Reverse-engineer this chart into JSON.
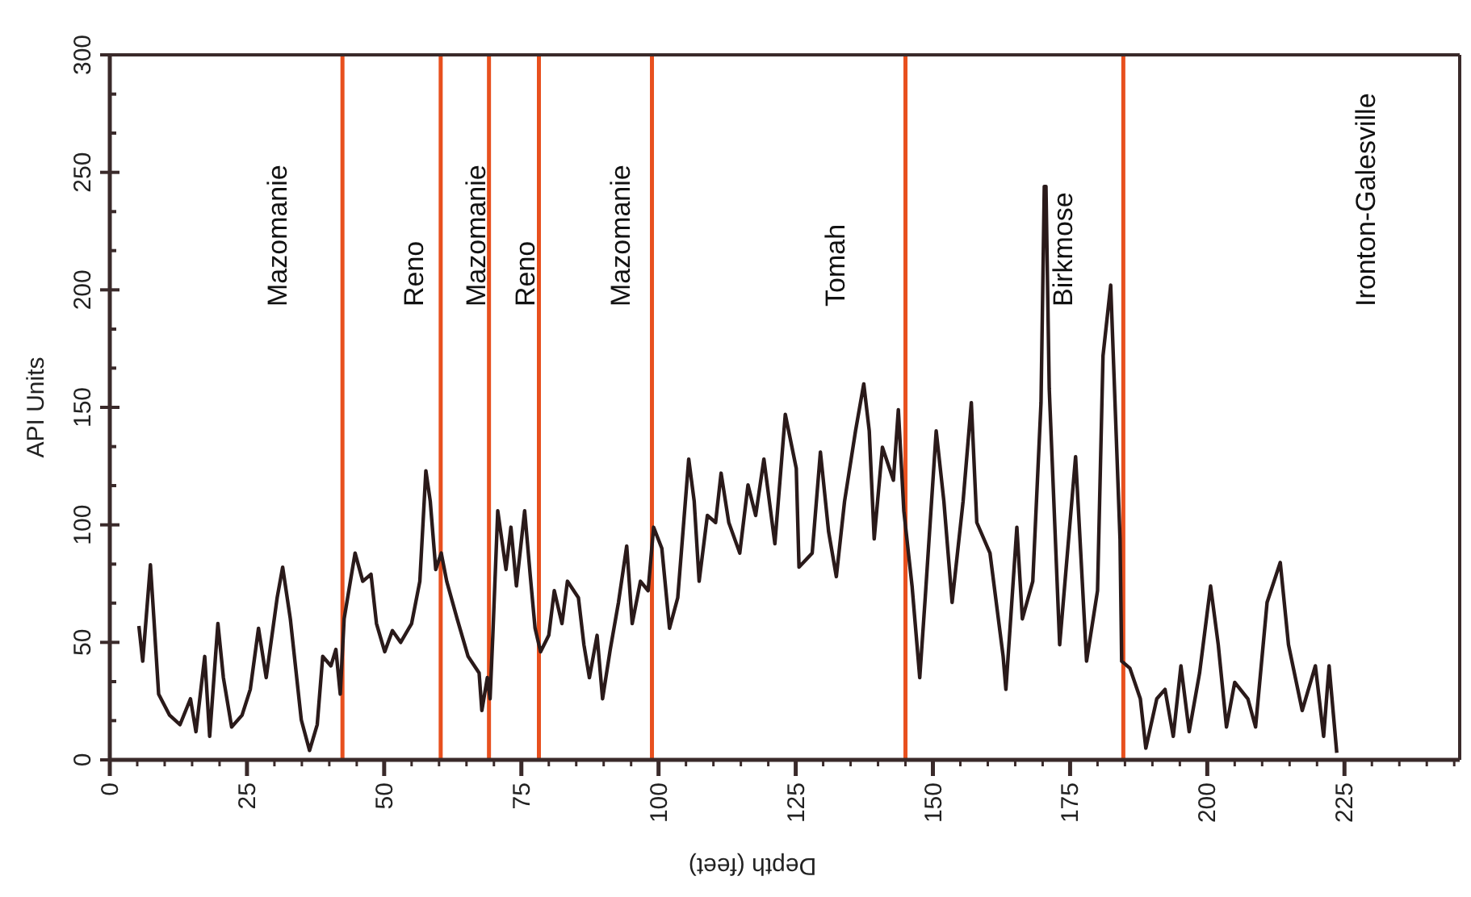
{
  "chart_data": {
    "type": "line",
    "xlabel": "Depth (feet)",
    "ylabel": "API Units",
    "xlim": [
      0,
      246
    ],
    "ylim": [
      0,
      300
    ],
    "xticks": [
      0,
      {
        "value": 5,
        "label": null
      },
      {
        "value": 10,
        "label": null
      },
      {
        "value": 15,
        "label": null
      },
      {
        "value": 20,
        "label": null
      },
      25,
      {
        "value": 30,
        "label": null
      },
      {
        "value": 35,
        "label": null
      },
      {
        "value": 40,
        "label": null
      },
      {
        "value": 45,
        "label": null
      },
      50,
      {
        "value": 55,
        "label": null
      },
      {
        "value": 60,
        "label": null
      },
      {
        "value": 65,
        "label": null
      },
      {
        "value": 70,
        "label": null
      },
      75,
      {
        "value": 80,
        "label": null
      },
      {
        "value": 85,
        "label": null
      },
      {
        "value": 90,
        "label": null
      },
      {
        "value": 95,
        "label": null
      },
      100,
      {
        "value": 105,
        "label": null
      },
      {
        "value": 110,
        "label": null
      },
      {
        "value": 115,
        "label": null
      },
      {
        "value": 120,
        "label": null
      },
      125,
      {
        "value": 130,
        "label": null
      },
      {
        "value": 135,
        "label": null
      },
      {
        "value": 140,
        "label": null
      },
      {
        "value": 145,
        "label": null
      },
      150,
      {
        "value": 155,
        "label": null
      },
      {
        "value": 160,
        "label": null
      },
      {
        "value": 165,
        "label": null
      },
      {
        "value": 170,
        "label": null
      },
      175,
      {
        "value": 180,
        "label": null
      },
      {
        "value": 185,
        "label": null
      },
      {
        "value": 190,
        "label": null
      },
      {
        "value": 195,
        "label": null
      },
      200,
      {
        "value": 205,
        "label": null
      },
      {
        "value": 210,
        "label": null
      },
      {
        "value": 215,
        "label": null
      },
      {
        "value": 220,
        "label": null
      },
      225,
      {
        "value": 230,
        "label": null
      },
      {
        "value": 235,
        "label": null
      },
      {
        "value": 240,
        "label": null
      },
      {
        "value": 245,
        "label": null
      }
    ],
    "yticks": [
      0,
      {
        "value": 16.7,
        "label": null
      },
      {
        "value": 33.3,
        "label": null
      },
      50,
      {
        "value": 66.7,
        "label": null
      },
      {
        "value": 83.3,
        "label": null
      },
      100,
      {
        "value": 116.7,
        "label": null
      },
      {
        "value": 133.3,
        "label": null
      },
      150,
      {
        "value": 166.7,
        "label": null
      },
      {
        "value": 183.3,
        "label": null
      },
      200,
      {
        "value": 216.7,
        "label": null
      },
      {
        "value": 233.3,
        "label": null
      },
      250,
      {
        "value": 266.7,
        "label": null
      },
      {
        "value": 283.3,
        "label": null
      },
      300
    ],
    "grid": false,
    "line_style": "solid",
    "marker": "none",
    "series": [
      {
        "color": "#2a1a1a",
        "x": [
          5.3,
          6,
          7.4,
          7.9,
          8.9,
          10.9,
          12.8,
          14.7,
          15.7,
          17.3,
          18.2,
          19.7,
          20.7,
          22.2,
          24.1,
          25.6,
          27.1,
          28.5,
          30.5,
          31.5,
          32.9,
          34.9,
          36.4,
          37.8,
          38.8,
          40.3,
          41.2,
          42,
          42.7,
          44.7,
          46.1,
          47.6,
          48.6,
          50.1,
          51.5,
          53,
          55,
          56.5,
          57.6,
          58.4,
          59.4,
          60.4,
          61.4,
          63.3,
          65.3,
          67.3,
          67.8,
          68.8,
          69.3,
          69.8,
          70.7,
          72.2,
          73.1,
          74.1,
          75.6,
          76.6,
          77.5,
          78.5,
          80,
          81,
          82.4,
          83.4,
          85.4,
          86.4,
          87.4,
          88.8,
          89.8,
          91.2,
          92.7,
          94.2,
          95.2,
          96.7,
          98.1,
          99.1,
          100.6,
          102,
          103.5,
          105.5,
          106.5,
          107.4,
          108.9,
          110.4,
          111.4,
          112.8,
          114.8,
          116.3,
          117.7,
          119.2,
          121.2,
          123.1,
          125.1,
          125.6,
          128,
          129.5,
          131,
          132.4,
          133.9,
          135.9,
          137.4,
          138.4,
          139.3,
          140.8,
          142.8,
          143.7,
          144.7,
          146.2,
          147.6,
          148.6,
          150.6,
          152,
          153.5,
          155.5,
          157,
          158,
          160.4,
          162.8,
          163.3,
          165.3,
          166.3,
          168.2,
          169.7,
          170.3,
          170.6,
          171.2,
          173.1,
          176,
          178,
          180,
          181,
          182.4,
          184.1,
          184.4,
          185.9,
          187.8,
          188.8,
          190.8,
          192.3,
          193.8,
          195.2,
          196.7,
          198.6,
          200.6,
          202,
          203.5,
          205,
          207.4,
          208.8,
          210.9,
          213.3,
          214.8,
          217.3,
          219.7,
          221.2,
          222.2,
          223.6
        ],
        "values": [
          57,
          42,
          83,
          65,
          28,
          19,
          15,
          26,
          12,
          44,
          10,
          58,
          35,
          14,
          19,
          30,
          56,
          35,
          69,
          82,
          60,
          17,
          4,
          15,
          44,
          40,
          47,
          28,
          60,
          88,
          76,
          79,
          58,
          46,
          55,
          50,
          58,
          76,
          123,
          110,
          81,
          88,
          76,
          60,
          44,
          37,
          21,
          35,
          26,
          53,
          106,
          81,
          99,
          74,
          106,
          79,
          56,
          46,
          53,
          72,
          58,
          76,
          69,
          49,
          35,
          53,
          26,
          47,
          67,
          91,
          58,
          76,
          72,
          99,
          90,
          56,
          69,
          128,
          110,
          76,
          104,
          101,
          122,
          101,
          88,
          117,
          104,
          128,
          92,
          147,
          124,
          82,
          88,
          131,
          97,
          78,
          110,
          140,
          160,
          140,
          94,
          133,
          119,
          149,
          106,
          74,
          35,
          69,
          140,
          110,
          67,
          110,
          152,
          101,
          88,
          44,
          30,
          99,
          60,
          76,
          152,
          244,
          244,
          158,
          49,
          129,
          42,
          72,
          172,
          202,
          94,
          42,
          39,
          26,
          5,
          26,
          30,
          10,
          40,
          12,
          37,
          74,
          49,
          14,
          33,
          26,
          14,
          67,
          84,
          49,
          21,
          40,
          10,
          40,
          3
        ]
      }
    ],
    "ref_lines": [
      {
        "axis": "x",
        "value": 42.4,
        "color": "#e8501e"
      },
      {
        "axis": "x",
        "value": 60.3,
        "color": "#e8501e"
      },
      {
        "axis": "x",
        "value": 69.1,
        "color": "#e8501e"
      },
      {
        "axis": "x",
        "value": 78.2,
        "color": "#e8501e"
      },
      {
        "axis": "x",
        "value": 98.8,
        "color": "#e8501e"
      },
      {
        "axis": "x",
        "value": 145,
        "color": "#e8501e"
      },
      {
        "axis": "x",
        "value": 184.7,
        "color": "#e8501e"
      }
    ],
    "annotations": [
      "Mazomanie",
      "Reno",
      "Mazomanie",
      "Reno",
      "Mazomanie",
      "Tomah",
      "Birkmose",
      "Ironton-Galesville"
    ]
  }
}
